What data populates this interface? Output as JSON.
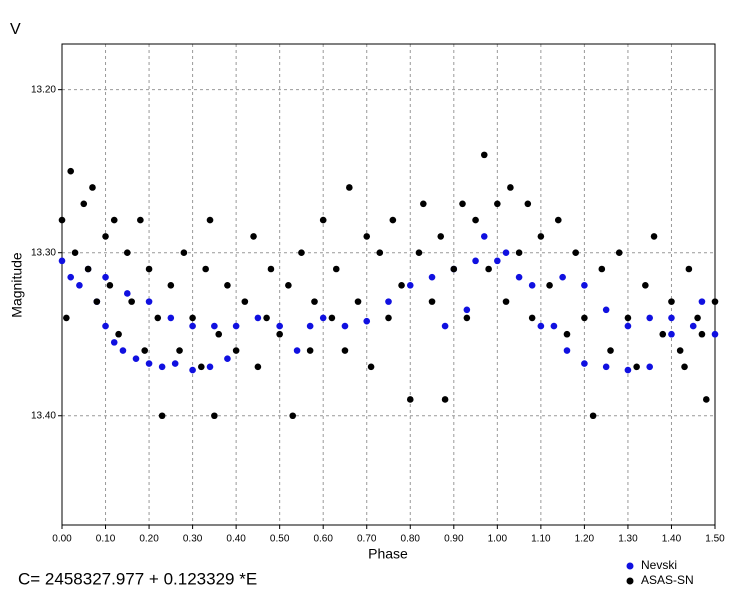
{
  "chart_data": {
    "type": "scatter",
    "title": "V",
    "x_label": "Phase",
    "y_label": "Magnitude",
    "annotation": "C= 2458327.977 + 0.123329 *E",
    "xlim": [
      0,
      1.5
    ],
    "ylim": [
      13.467,
      13.172
    ],
    "y_inverted": true,
    "grid": true,
    "legend": "bottom-right",
    "xticks": [
      {
        "value": 0,
        "label": "0.00"
      },
      {
        "value": 0.1,
        "label": "0.10"
      },
      {
        "value": 0.2,
        "label": "0.20"
      },
      {
        "value": 0.3,
        "label": "0.30"
      },
      {
        "value": 0.4,
        "label": "0.40"
      },
      {
        "value": 0.5,
        "label": "0.50"
      },
      {
        "value": 0.6,
        "label": "0.60"
      },
      {
        "value": 0.7,
        "label": "0.70"
      },
      {
        "value": 0.8,
        "label": "0.80"
      },
      {
        "value": 0.9,
        "label": "0.90"
      },
      {
        "value": 1,
        "label": "1.00"
      },
      {
        "value": 1.1,
        "label": "1.10"
      },
      {
        "value": 1.2,
        "label": "1.20"
      },
      {
        "value": 1.3,
        "label": "1.30"
      },
      {
        "value": 1.4,
        "label": "1.40"
      },
      {
        "value": 1.5,
        "label": "1.50"
      }
    ],
    "yticks": [
      {
        "value": 13.2,
        "label": "13.20"
      },
      {
        "value": 13.3,
        "label": "13.30"
      },
      {
        "value": 13.4,
        "label": "13.40"
      }
    ],
    "series": [
      {
        "name": "Nevski",
        "color": "#1010e0",
        "x": [
          0.0,
          0.02,
          0.04,
          0.06,
          0.08,
          0.1,
          0.12,
          0.14,
          0.17,
          0.2,
          0.23,
          0.26,
          0.3,
          0.34,
          0.38,
          0.1,
          0.15,
          0.2,
          0.25,
          0.3,
          0.35,
          0.4,
          0.45,
          0.5,
          0.54,
          0.57,
          0.6,
          0.65,
          0.7,
          0.75,
          0.8,
          0.85,
          0.88,
          0.9,
          0.93,
          0.95,
          0.97,
          1.0,
          1.02,
          1.05,
          1.08,
          1.1,
          1.13,
          1.16,
          1.2,
          1.25,
          1.3,
          1.35,
          1.15,
          1.2,
          1.25,
          1.3,
          1.35,
          1.4,
          1.45,
          1.5,
          1.4,
          1.47
        ],
        "values": [
          13.305,
          13.315,
          13.32,
          13.31,
          13.33,
          13.345,
          13.355,
          13.36,
          13.365,
          13.368,
          13.37,
          13.368,
          13.372,
          13.37,
          13.365,
          13.315,
          13.325,
          13.33,
          13.34,
          13.345,
          13.345,
          13.345,
          13.34,
          13.345,
          13.36,
          13.345,
          13.34,
          13.345,
          13.342,
          13.33,
          13.32,
          13.315,
          13.345,
          13.31,
          13.335,
          13.305,
          13.29,
          13.305,
          13.3,
          13.315,
          13.32,
          13.345,
          13.345,
          13.36,
          13.368,
          13.37,
          13.372,
          13.37,
          13.315,
          13.32,
          13.335,
          13.345,
          13.34,
          13.35,
          13.345,
          13.35,
          13.34,
          13.33
        ]
      },
      {
        "name": "ASAS-SN",
        "color": "#000000",
        "x": [
          0.0,
          0.01,
          0.02,
          0.03,
          0.05,
          0.06,
          0.07,
          0.08,
          0.1,
          0.11,
          0.12,
          0.13,
          0.15,
          0.16,
          0.18,
          0.19,
          0.2,
          0.22,
          0.23,
          0.25,
          0.27,
          0.28,
          0.3,
          0.32,
          0.33,
          0.34,
          0.35,
          0.36,
          0.38,
          0.4,
          0.42,
          0.44,
          0.45,
          0.47,
          0.48,
          0.5,
          0.52,
          0.53,
          0.55,
          0.57,
          0.58,
          0.6,
          0.62,
          0.63,
          0.65,
          0.66,
          0.68,
          0.7,
          0.71,
          0.73,
          0.75,
          0.76,
          0.78,
          0.8,
          0.82,
          0.83,
          0.85,
          0.87,
          0.88,
          0.9,
          0.92,
          0.93,
          0.95,
          0.97,
          0.98,
          1.0,
          1.02,
          1.03,
          1.05,
          1.07,
          1.08,
          1.1,
          1.12,
          1.14,
          1.16,
          1.18,
          1.2,
          1.22,
          1.24,
          1.26,
          1.28,
          1.3,
          1.32,
          1.34,
          1.36,
          1.38,
          1.4,
          1.42,
          1.44,
          1.46,
          1.48,
          1.5,
          1.47,
          1.43
        ],
        "values": [
          13.28,
          13.34,
          13.25,
          13.3,
          13.27,
          13.31,
          13.26,
          13.33,
          13.29,
          13.32,
          13.28,
          13.35,
          13.3,
          13.33,
          13.28,
          13.36,
          13.31,
          13.34,
          13.4,
          13.32,
          13.36,
          13.3,
          13.34,
          13.37,
          13.31,
          13.28,
          13.4,
          13.35,
          13.32,
          13.36,
          13.33,
          13.29,
          13.37,
          13.34,
          13.31,
          13.35,
          13.32,
          13.4,
          13.3,
          13.36,
          13.33,
          13.28,
          13.34,
          13.31,
          13.36,
          13.26,
          13.33,
          13.29,
          13.37,
          13.3,
          13.34,
          13.28,
          13.32,
          13.39,
          13.3,
          13.27,
          13.33,
          13.29,
          13.39,
          13.31,
          13.27,
          13.34,
          13.28,
          13.24,
          13.31,
          13.27,
          13.33,
          13.26,
          13.3,
          13.27,
          13.34,
          13.29,
          13.32,
          13.28,
          13.35,
          13.3,
          13.34,
          13.4,
          13.31,
          13.36,
          13.3,
          13.34,
          13.37,
          13.32,
          13.29,
          13.35,
          13.33,
          13.36,
          13.31,
          13.34,
          13.39,
          13.33,
          13.35,
          13.37
        ]
      }
    ]
  }
}
